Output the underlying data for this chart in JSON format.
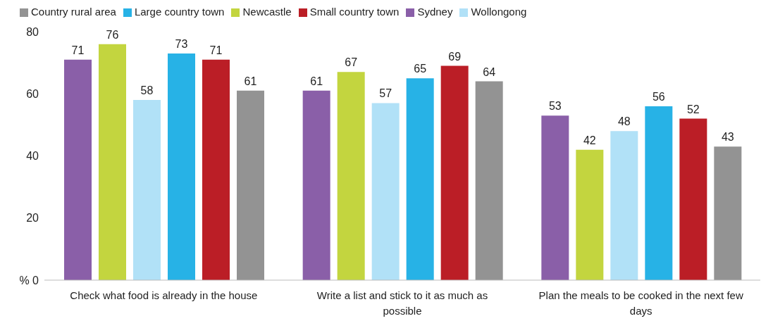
{
  "chart_data": {
    "type": "bar",
    "categories": [
      "Check what food is already in the house",
      "Write a list and stick to it as much as possible",
      "Plan the meals to be cooked in the next few days"
    ],
    "series": [
      {
        "name": "Sydney",
        "color": "#8a5fa8",
        "values": [
          71,
          61,
          53
        ]
      },
      {
        "name": "Newcastle",
        "color": "#c3d53f",
        "values": [
          76,
          67,
          42
        ]
      },
      {
        "name": "Wollongong",
        "color": "#b1e1f7",
        "values": [
          58,
          57,
          48
        ]
      },
      {
        "name": "Large country town",
        "color": "#27b2e6",
        "values": [
          73,
          65,
          56
        ]
      },
      {
        "name": "Small country town",
        "color": "#bb1e26",
        "values": [
          71,
          69,
          52
        ]
      },
      {
        "name": "Country rural area",
        "color": "#939393",
        "values": [
          61,
          64,
          43
        ]
      }
    ],
    "ylim": [
      0,
      80
    ],
    "yticks": [
      {
        "value": 0,
        "label": "% 0"
      },
      20,
      40,
      60,
      80
    ],
    "legend": "top left",
    "data_labels": true
  }
}
